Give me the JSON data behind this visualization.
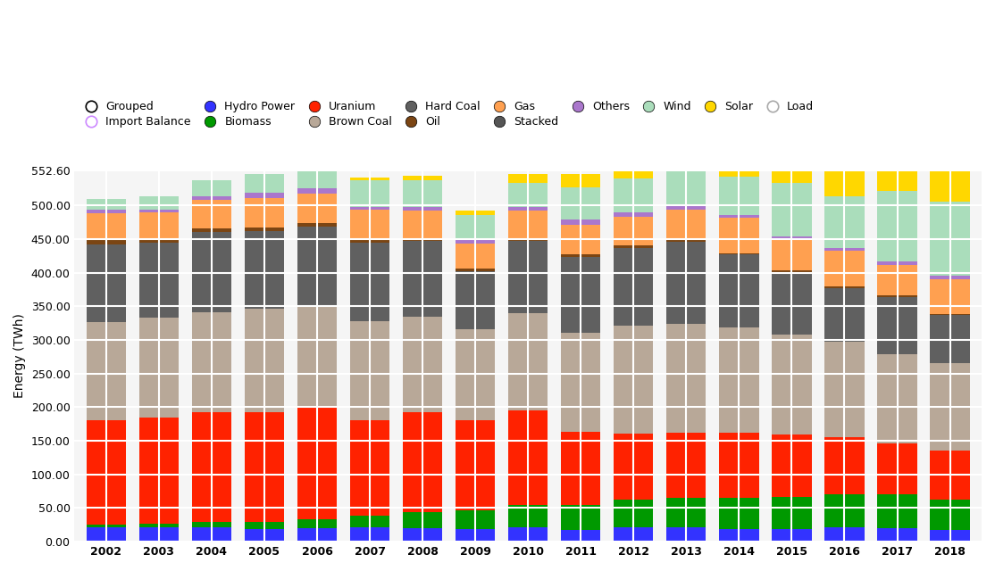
{
  "years": [
    2002,
    2003,
    2004,
    2005,
    2006,
    2007,
    2008,
    2009,
    2010,
    2011,
    2012,
    2013,
    2014,
    2015,
    2016,
    2017,
    2018
  ],
  "series": {
    "Hydro Power": [
      21,
      22,
      21,
      19,
      20,
      21,
      20,
      19,
      21,
      17,
      21,
      22,
      19,
      19,
      21,
      20,
      17
    ],
    "Biomass": [
      5,
      5,
      8,
      10,
      13,
      18,
      24,
      28,
      33,
      38,
      41,
      43,
      46,
      48,
      50,
      50,
      46
    ],
    "Uranium": [
      155,
      157,
      163,
      163,
      167,
      141,
      148,
      134,
      141,
      108,
      99,
      97,
      97,
      92,
      84,
      76,
      72
    ],
    "Brown Coal": [
      146,
      149,
      149,
      155,
      151,
      148,
      143,
      135,
      145,
      148,
      160,
      162,
      156,
      149,
      142,
      133,
      131
    ],
    "Hard Coal": [
      115,
      111,
      120,
      115,
      118,
      116,
      112,
      86,
      107,
      112,
      116,
      122,
      109,
      93,
      80,
      85,
      71
    ],
    "Oil": [
      6,
      6,
      5,
      5,
      5,
      5,
      4,
      4,
      4,
      4,
      3,
      3,
      2,
      2,
      2,
      2,
      2
    ],
    "Gas": [
      40,
      39,
      42,
      44,
      44,
      44,
      41,
      37,
      41,
      44,
      43,
      45,
      52,
      46,
      53,
      46,
      51
    ],
    "Others": [
      5,
      5,
      5,
      8,
      7,
      5,
      5,
      5,
      5,
      8,
      7,
      5,
      5,
      5,
      5,
      5,
      5
    ],
    "Wind": [
      16,
      19,
      25,
      27,
      30,
      40,
      40,
      38,
      37,
      48,
      50,
      52,
      57,
      80,
      77,
      105,
      111
    ],
    "Solar": [
      0,
      0,
      0,
      1,
      2,
      4,
      7,
      6,
      12,
      19,
      26,
      30,
      35,
      38,
      38,
      40,
      46
    ]
  },
  "colors": {
    "Hydro Power": "#3333FF",
    "Biomass": "#009900",
    "Uranium": "#FF2200",
    "Brown Coal": "#B8A898",
    "Hard Coal": "#606060",
    "Oil": "#7B4513",
    "Gas": "#FFA050",
    "Others": "#AA77CC",
    "Wind": "#AADDBB",
    "Solar": "#FFD700"
  },
  "legend_items": [
    {
      "label": "Grouped",
      "face": "#FFFFFF",
      "edge": "#000000",
      "outline": true
    },
    {
      "label": "Import Balance",
      "face": "#FFFFFF",
      "edge": "#CC88FF",
      "outline": true
    },
    {
      "label": "Hydro Power",
      "face": "#3333FF",
      "edge": "#000000",
      "outline": false
    },
    {
      "label": "Biomass",
      "face": "#009900",
      "edge": "#000000",
      "outline": false
    },
    {
      "label": "Uranium",
      "face": "#FF2200",
      "edge": "#000000",
      "outline": false
    },
    {
      "label": "Brown Coal",
      "face": "#B8A898",
      "edge": "#000000",
      "outline": false
    },
    {
      "label": "Hard Coal",
      "face": "#606060",
      "edge": "#000000",
      "outline": false
    },
    {
      "label": "Oil",
      "face": "#7B4513",
      "edge": "#000000",
      "outline": false
    },
    {
      "label": "Gas",
      "face": "#FFA050",
      "edge": "#000000",
      "outline": false
    },
    {
      "label": "Stacked",
      "face": "#555555",
      "edge": "#000000",
      "outline": false
    },
    {
      "label": "Others",
      "face": "#AA77CC",
      "edge": "#000000",
      "outline": false
    },
    {
      "label": "Wind",
      "face": "#AADDBB",
      "edge": "#000000",
      "outline": false
    },
    {
      "label": "Solar",
      "face": "#FFD700",
      "edge": "#000000",
      "outline": false
    },
    {
      "label": "Load",
      "face": "#FFFFFF",
      "edge": "#AAAAAA",
      "outline": true
    }
  ],
  "ylabel": "Energy (TWh)",
  "ylim": [
    0,
    552.6
  ],
  "yticks": [
    0.0,
    50.0,
    100.0,
    150.0,
    200.0,
    250.0,
    300.0,
    350.0,
    400.0,
    450.0,
    500.0,
    552.6
  ],
  "bar_width": 0.75,
  "plot_bgcolor": "#FFFFFF",
  "grid_color": "#FFFFFF",
  "axes_bgcolor": "#F5F5F5"
}
